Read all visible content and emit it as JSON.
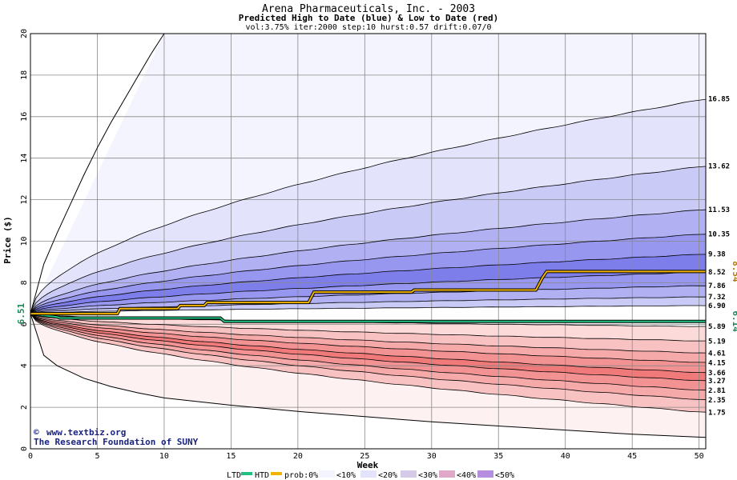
{
  "colors": {
    "blue_bands": [
      "#f4f4fe",
      "#e3e3fb",
      "#cacaf7",
      "#b0b0f3",
      "#9797ef",
      "#7e7eeb"
    ],
    "red_bands": [
      "#fdf1f1",
      "#fcdada",
      "#f9c2c2",
      "#f6a9a9",
      "#f39292",
      "#f07a7a"
    ],
    "htd_line": "#f0b400",
    "ltd_line": "#20c080",
    "start_label": "#1a8a5a",
    "high_label": "#b07a00",
    "low_label": "#1a8a5a",
    "credit": "#1a237e"
  },
  "chart_data": {
    "type": "area",
    "title": "Arena Pharmaceuticals, Inc. - 2003",
    "subtitle": "Predicted High to Date (blue) &  Low to Date (red)",
    "params": "vol:3.75% iter:2000 step:10 hurst:0.57 drift:0.07/0",
    "xlabel": "Week",
    "ylabel": "Price ($)",
    "xlim": [
      0,
      50.5
    ],
    "ylim": [
      0,
      20
    ],
    "xticks": [
      "0",
      "5",
      "10",
      "15",
      "20",
      "25",
      "30",
      "35",
      "40",
      "45",
      "50"
    ],
    "yticks": [
      "0",
      "2",
      "4",
      "6",
      "8",
      "10",
      "12",
      "14",
      "16",
      "18",
      "20"
    ],
    "grid": true,
    "start_value": 6.51,
    "start_label": "6.51",
    "high_curve": {
      "x": [
        0,
        1,
        2,
        3,
        4,
        5,
        6,
        7,
        8,
        9,
        10
      ],
      "y": [
        6.51,
        8.9,
        10.4,
        11.8,
        13.2,
        14.5,
        15.7,
        16.8,
        17.9,
        19.0,
        20.0
      ]
    },
    "low_curve": {
      "x": [
        0,
        1,
        2,
        4,
        6,
        8,
        10,
        15,
        20,
        25,
        30,
        35,
        40,
        45,
        50.5
      ],
      "y": [
        6.51,
        4.5,
        4.0,
        3.4,
        3.0,
        2.7,
        2.45,
        2.1,
        1.8,
        1.55,
        1.3,
        1.1,
        0.9,
        0.7,
        0.55
      ]
    },
    "upper_end_values": [
      16.85,
      13.62,
      11.53,
      10.35,
      9.38,
      8.52,
      7.86,
      7.32,
      6.9
    ],
    "upper_end_labels": [
      "16.85",
      "13.62",
      "11.53",
      "10.35",
      "9.38",
      "8.52",
      "7.86",
      "7.32",
      "6.90"
    ],
    "lower_end_values": [
      5.89,
      5.19,
      4.61,
      4.15,
      3.66,
      3.27,
      2.81,
      2.35,
      1.75
    ],
    "lower_end_labels": [
      "5.89",
      "5.19",
      "4.61",
      "4.15",
      "3.66",
      "3.27",
      "2.81",
      "2.35",
      "1.75"
    ],
    "high_to_date": {
      "name": "HTD",
      "x": [
        0,
        6.5,
        6.7,
        11,
        11.2,
        13,
        13.2,
        20.8,
        21.2,
        28.5,
        28.7,
        37.8,
        38.3,
        38.6,
        50.5
      ],
      "y": [
        6.51,
        6.51,
        6.75,
        6.75,
        6.9,
        6.9,
        7.05,
        7.05,
        7.55,
        7.55,
        7.65,
        7.65,
        8.25,
        8.54,
        8.54
      ],
      "end_label": "8.54"
    },
    "low_to_date": {
      "name": "LTD",
      "x": [
        0,
        2,
        2.2,
        14.2,
        14.5,
        50.5
      ],
      "y": [
        6.51,
        6.35,
        6.3,
        6.3,
        6.14,
        6.14
      ],
      "end_label": "6.14"
    }
  },
  "credit": {
    "site": "www.textbiz.org",
    "org": "The Research Foundation of SUNY"
  },
  "legend": {
    "ltd": "LTD",
    "htd": "HTD",
    "prob": "prob:0%",
    "bins": [
      "<10%",
      "<20%",
      "<30%",
      "<40%",
      "<50%"
    ]
  }
}
